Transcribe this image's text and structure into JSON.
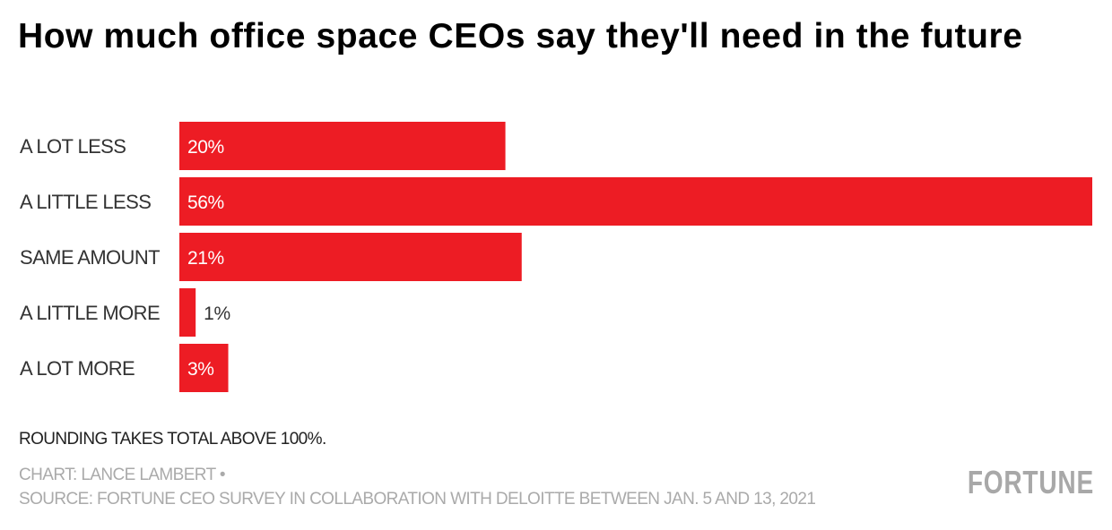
{
  "chart_data": {
    "type": "bar",
    "orientation": "horizontal",
    "title": "How much office space CEOs say they'll need in the future",
    "categories": [
      "A LOT LESS",
      "A LITTLE LESS",
      "SAME AMOUNT",
      "A LITTLE MORE",
      "A LOT MORE"
    ],
    "values": [
      20,
      56,
      21,
      1,
      3
    ],
    "value_labels": [
      "20%",
      "56%",
      "21%",
      "1%",
      "3%"
    ],
    "unit": "%",
    "xlabel": "",
    "ylabel": "",
    "xlim": [
      0,
      56
    ],
    "grid": false,
    "bar_color": "#ed1c24"
  },
  "notes": {
    "footnote": "ROUNDING TAKES TOTAL ABOVE 100%.",
    "credit": "CHART: LANCE LAMBERT •",
    "source": "SOURCE: FORTUNE CEO SURVEY IN COLLABORATION WITH DELOITTE BETWEEN JAN. 5 AND 13, 2021"
  },
  "brand": {
    "logo_text": "FORTUNE",
    "logo_color": "#a8a8a8"
  }
}
